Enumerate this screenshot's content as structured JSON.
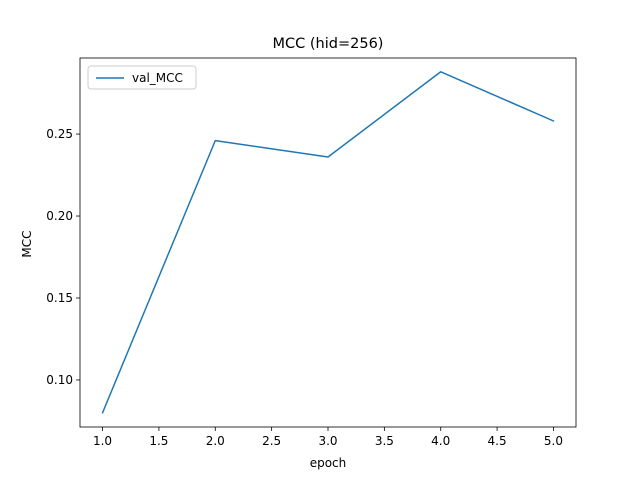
{
  "chart_data": {
    "type": "line",
    "title": "MCC (hid=256)",
    "xlabel": "epoch",
    "ylabel": "MCC",
    "x": [
      1.0,
      2.0,
      3.0,
      4.0,
      5.0
    ],
    "series": [
      {
        "name": "val_MCC",
        "color": "#1f77b4",
        "values": [
          0.08,
          0.246,
          0.236,
          0.288,
          0.258
        ]
      }
    ],
    "xlim": [
      0.8,
      5.2
    ],
    "ylim": [
      0.0713,
      0.2964
    ],
    "xticks": [
      "1.0",
      "1.5",
      "2.0",
      "2.5",
      "3.0",
      "3.5",
      "4.0",
      "4.5",
      "5.0"
    ],
    "yticks": [
      "0.10",
      "0.15",
      "0.20",
      "0.25"
    ],
    "grid": false,
    "legend": "upper left"
  }
}
